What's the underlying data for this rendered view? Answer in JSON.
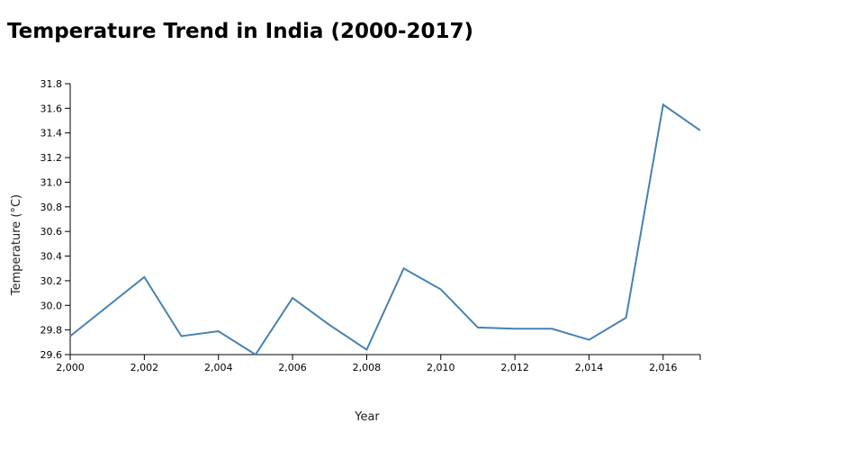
{
  "chart_data": {
    "type": "line",
    "title": "Temperature Trend in India (2000-2017)",
    "xlabel": "Year",
    "ylabel": "Temperature (°C)",
    "xlim": [
      2000,
      2017
    ],
    "ylim": [
      29.6,
      31.8
    ],
    "x_ticks": [
      "2,000",
      "2,002",
      "2,004",
      "2,006",
      "2,008",
      "2,010",
      "2,012",
      "2,014",
      "2,016"
    ],
    "y_ticks": [
      "29.6",
      "29.8",
      "30.0",
      "30.2",
      "30.4",
      "30.6",
      "30.8",
      "31.0",
      "31.2",
      "31.4",
      "31.6",
      "31.8"
    ],
    "grid": false,
    "legend": "none",
    "line_color": "#4682b4",
    "series": [
      {
        "x": [
          2000,
          2001,
          2002,
          2003,
          2004,
          2005,
          2006,
          2007,
          2008,
          2009,
          2010,
          2011,
          2012,
          2013,
          2014,
          2015,
          2016,
          2017
        ],
        "values": [
          29.75,
          29.99,
          30.23,
          29.75,
          29.79,
          29.6,
          30.06,
          29.84,
          29.64,
          30.3,
          30.13,
          29.82,
          29.81,
          29.81,
          29.72,
          29.9,
          31.63,
          31.42
        ]
      }
    ]
  }
}
